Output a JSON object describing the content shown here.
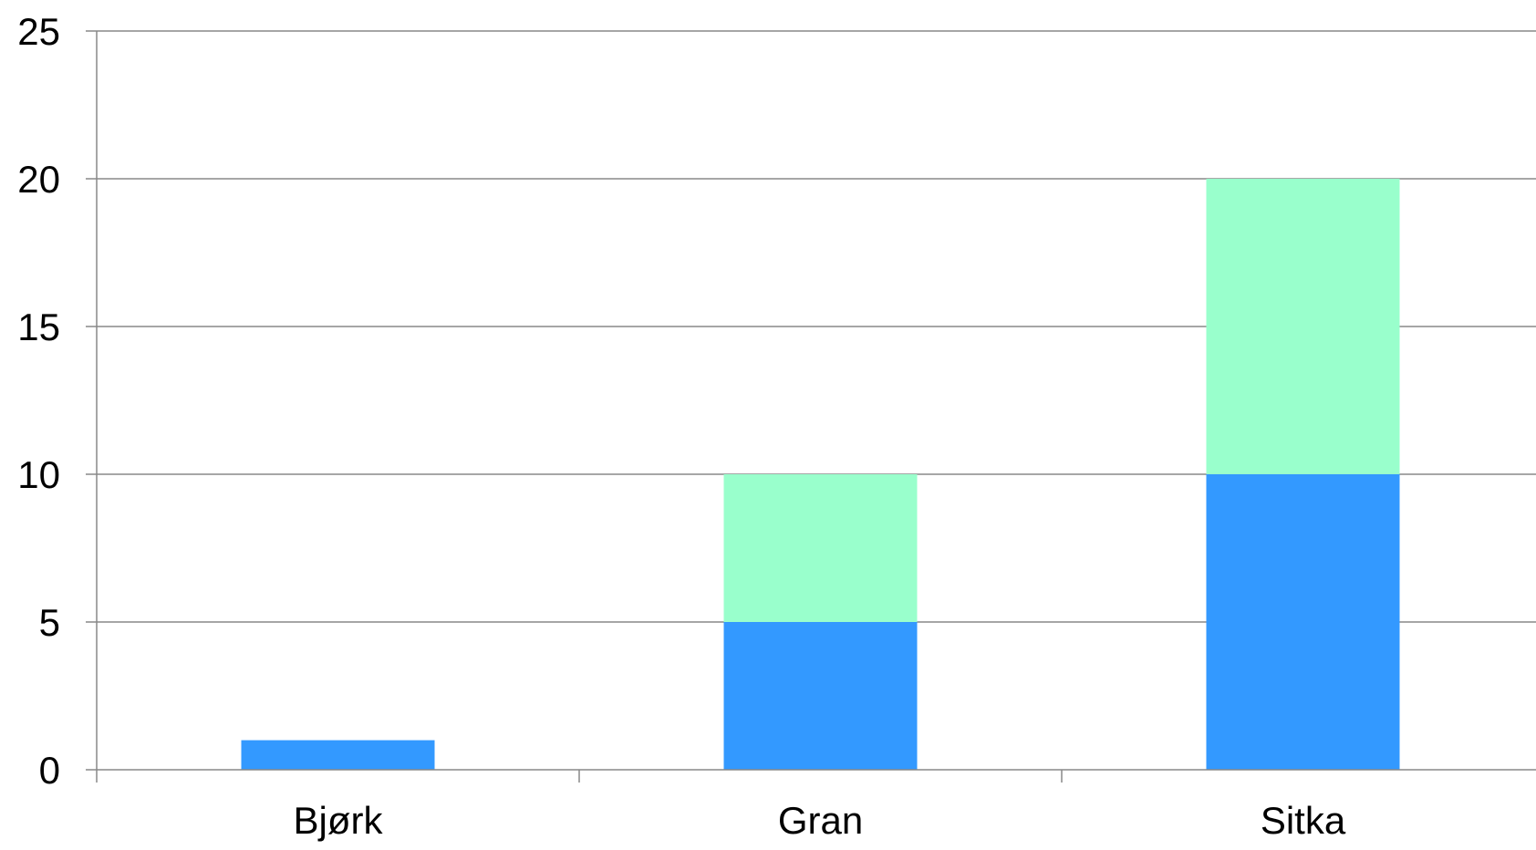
{
  "chart_data": {
    "type": "bar",
    "stacked": true,
    "title": "",
    "xlabel": "",
    "ylabel": "",
    "categories": [
      "Bjørk",
      "Gran",
      "Sitka"
    ],
    "series": [
      {
        "values": [
          1,
          5,
          10
        ],
        "color": "#3399ff"
      },
      {
        "values": [
          0,
          5,
          10
        ],
        "color": "#99ffcc"
      }
    ],
    "ylim": [
      0,
      25
    ],
    "yticks": [
      0,
      5,
      10,
      15,
      20,
      25
    ],
    "grid": true,
    "legend": "none"
  },
  "colors": {
    "gridline": "#888888",
    "axis": "#888888"
  }
}
